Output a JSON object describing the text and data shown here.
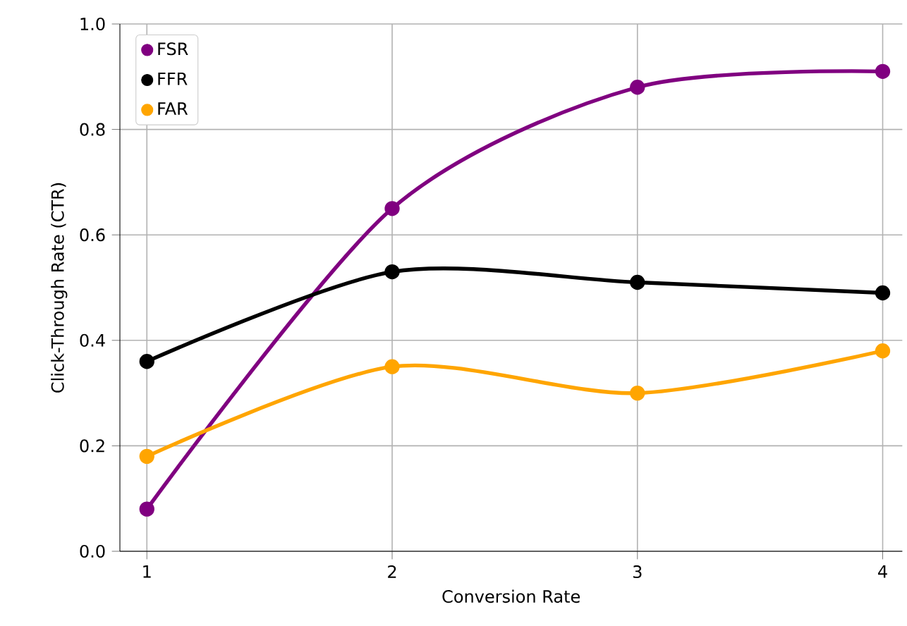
{
  "chart_data": {
    "type": "line",
    "xlabel": "Conversion Rate",
    "ylabel": "Click-Through Rate (CTR)",
    "x": [
      1,
      2,
      3,
      4
    ],
    "series": [
      {
        "name": "FSR",
        "color": "#800080",
        "values": [
          0.08,
          0.65,
          0.88,
          0.91
        ]
      },
      {
        "name": "FFR",
        "color": "#000000",
        "values": [
          0.36,
          0.53,
          0.51,
          0.49
        ]
      },
      {
        "name": "FAR",
        "color": "#ffa500",
        "values": [
          0.18,
          0.35,
          0.3,
          0.38
        ]
      }
    ],
    "xlim": [
      0.89,
      4.08
    ],
    "ylim": [
      0,
      1
    ],
    "xticks": [
      1,
      2,
      3,
      4
    ],
    "yticks": [
      {
        "value": 0,
        "label": "0.0"
      },
      {
        "value": 0.2,
        "label": "0.2"
      },
      {
        "value": 0.4,
        "label": "0.4"
      },
      {
        "value": 0.6,
        "label": "0.6"
      },
      {
        "value": 0.8,
        "label": "0.8"
      },
      {
        "value": 1,
        "label": "1.0"
      }
    ],
    "grid": true,
    "legend": "top left",
    "marker": "circle",
    "line_style": "solid"
  }
}
